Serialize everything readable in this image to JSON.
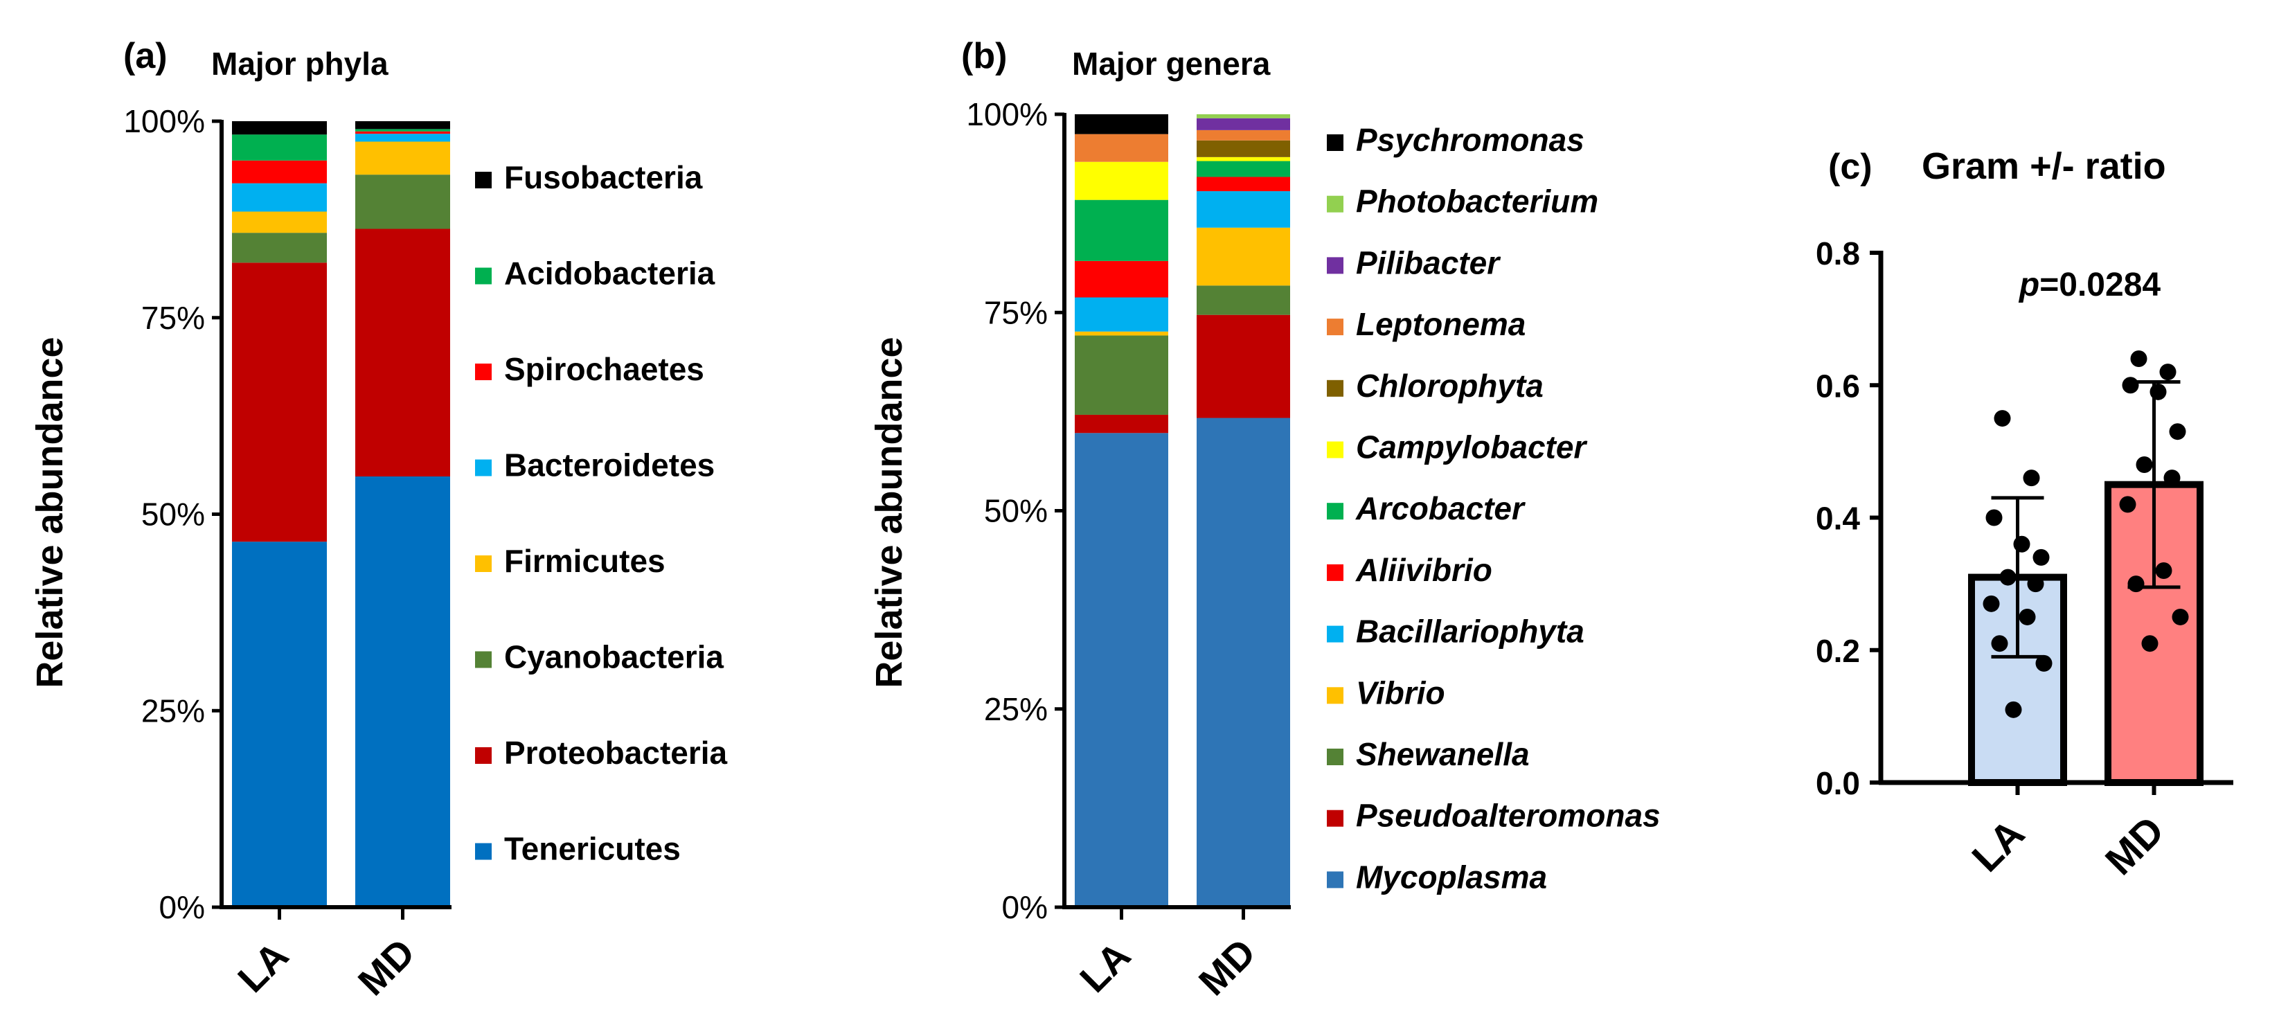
{
  "chart_data": [
    {
      "type": "stacked-bar",
      "panel_label": "(a)",
      "title": "Major phyla",
      "ylabel": "Relative abundance",
      "ylim": [
        0,
        100
      ],
      "yticks": [
        "0%",
        "25%",
        "50%",
        "75%",
        "100%"
      ],
      "categories": [
        "LA",
        "MD"
      ],
      "series": [
        {
          "name": "Tenericutes",
          "color": "#0070c0",
          "values": [
            46.5,
            54.8
          ]
        },
        {
          "name": "Proteobacteria",
          "color": "#c00000",
          "values": [
            35.5,
            31.5
          ]
        },
        {
          "name": "Cyanobacteria",
          "color": "#548235",
          "values": [
            3.8,
            6.9
          ]
        },
        {
          "name": "Firmicutes",
          "color": "#ffc000",
          "values": [
            2.7,
            4.2
          ]
        },
        {
          "name": "Bacteroidetes",
          "color": "#00b0f0",
          "values": [
            3.6,
            1.0
          ]
        },
        {
          "name": "Spirochaetes",
          "color": "#ff0000",
          "values": [
            2.9,
            0.3
          ]
        },
        {
          "name": "Acidobacteria",
          "color": "#00b050",
          "values": [
            3.3,
            0.3
          ]
        },
        {
          "name": "Fusobacteria",
          "color": "#000000",
          "values": [
            1.7,
            1.0
          ]
        }
      ]
    },
    {
      "type": "stacked-bar",
      "panel_label": "(b)",
      "title": "Major genera",
      "ylabel": "Relative abundance",
      "ylim": [
        0,
        100
      ],
      "yticks": [
        "0%",
        "25%",
        "50%",
        "75%",
        "100%"
      ],
      "categories": [
        "LA",
        "MD"
      ],
      "series": [
        {
          "name": "Mycoplasma",
          "color": "#2e75b6",
          "values": [
            59.8,
            61.7
          ]
        },
        {
          "name": "Pseudoalteromonas",
          "color": "#c00000",
          "values": [
            2.3,
            13.0
          ]
        },
        {
          "name": "Shewanella",
          "color": "#548235",
          "values": [
            10.0,
            3.7
          ]
        },
        {
          "name": "Vibrio",
          "color": "#ffc000",
          "values": [
            0.5,
            7.3
          ]
        },
        {
          "name": "Bacillariophyta",
          "color": "#00b0f0",
          "values": [
            4.3,
            4.6
          ]
        },
        {
          "name": "Aliivibrio",
          "color": "#ff0000",
          "values": [
            4.6,
            1.8
          ]
        },
        {
          "name": "Arcobacter",
          "color": "#00b050",
          "values": [
            7.7,
            2.0
          ]
        },
        {
          "name": "Campylobacter",
          "color": "#ffff00",
          "values": [
            4.8,
            0.5
          ]
        },
        {
          "name": "Chlorophyta",
          "color": "#7f6000",
          "values": [
            0,
            2.1
          ]
        },
        {
          "name": "Leptonema",
          "color": "#ed7d31",
          "values": [
            3.5,
            1.3
          ]
        },
        {
          "name": "Pilibacter",
          "color": "#7030a0",
          "values": [
            0,
            1.5
          ]
        },
        {
          "name": "Photobacterium",
          "color": "#92d050",
          "values": [
            0,
            0.5
          ]
        },
        {
          "name": "Psychromonas",
          "color": "#000000",
          "values": [
            2.5,
            0
          ]
        }
      ]
    },
    {
      "type": "bar",
      "panel_label": "(c)",
      "title": "Gram +/- ratio",
      "annotation": "=0.0284",
      "annotation_italic": "p",
      "ylim": [
        0,
        0.8
      ],
      "yticks": [
        "0.0",
        "0.2",
        "0.4",
        "0.6",
        "0.8"
      ],
      "categories": [
        "LA",
        "MD"
      ],
      "colors": [
        "#c9dcf3",
        "#ff8080"
      ],
      "means": [
        0.31,
        0.45
      ],
      "sd": [
        0.12,
        0.155
      ],
      "points": [
        [
          0.55,
          0.46,
          0.4,
          0.36,
          0.34,
          0.31,
          0.3,
          0.27,
          0.25,
          0.21,
          0.18,
          0.11
        ],
        [
          0.64,
          0.62,
          0.6,
          0.59,
          0.53,
          0.48,
          0.46,
          0.42,
          0.32,
          0.3,
          0.25,
          0.21
        ]
      ]
    }
  ]
}
